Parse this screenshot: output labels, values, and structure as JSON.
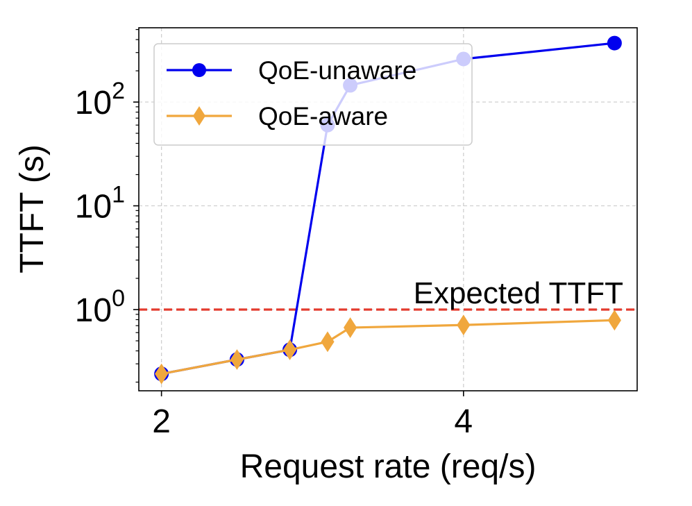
{
  "chart_data": {
    "type": "line",
    "x": [
      2.0,
      2.5,
      2.85,
      3.1,
      3.25,
      4.0,
      5.0
    ],
    "series": [
      {
        "name": "QoE-unaware",
        "color": "#0000ee",
        "marker": "circle",
        "values": [
          0.24,
          0.33,
          0.41,
          60,
          145,
          260,
          370
        ]
      },
      {
        "name": "QoE-aware",
        "color": "#f0a73d",
        "marker": "thin-diamond",
        "values": [
          0.24,
          0.33,
          0.41,
          0.49,
          0.67,
          0.71,
          0.79
        ]
      }
    ],
    "xlabel": "Request rate (req/s)",
    "ylabel": "TTFT (s)",
    "xlim": [
      1.85,
      5.15
    ],
    "ylim": [
      0.165,
      520
    ],
    "yscale": "log",
    "xticks": [
      {
        "value": 2,
        "label": "2"
      },
      {
        "value": 4,
        "label": "4"
      }
    ],
    "yticks": [
      {
        "value": 1,
        "base": "10",
        "exp": "0"
      },
      {
        "value": 10,
        "base": "10",
        "exp": "1"
      },
      {
        "value": 100,
        "base": "10",
        "exp": "2"
      }
    ],
    "grid": true,
    "legend_position": "upper-left",
    "reference_line": {
      "value": 1,
      "label": "Expected TTFT",
      "color": "#e33b2e",
      "style": "dashed"
    }
  }
}
